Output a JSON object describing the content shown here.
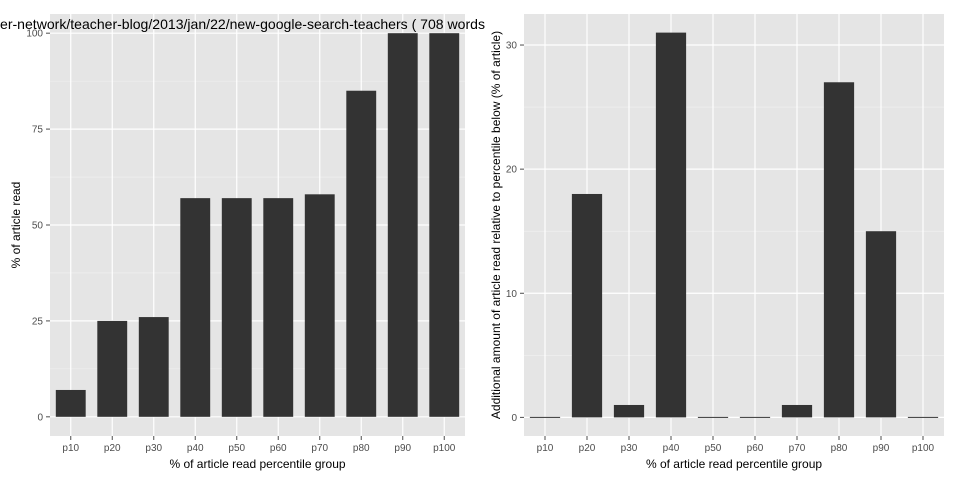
{
  "chart_data": [
    {
      "type": "bar",
      "title": "er-network/teacher-blog/2013/jan/22/new-google-search-teachers ( 708 words",
      "xlabel": "% of article read percentile group",
      "ylabel": "% of article read",
      "categories": [
        "p10",
        "p20",
        "p30",
        "p40",
        "p50",
        "p60",
        "p70",
        "p80",
        "p90",
        "p100"
      ],
      "values": [
        7,
        25,
        26,
        57,
        57,
        57,
        58,
        85,
        100,
        100
      ],
      "ylim": [
        -5,
        105
      ],
      "yticks": [
        0,
        25,
        50,
        75,
        100
      ],
      "grid": true,
      "bar_color": "#333333",
      "panel_color": "#e5e5e5"
    },
    {
      "type": "bar",
      "title": "",
      "xlabel": "% of article read percentile group",
      "ylabel": "Additional amount of article read relative to percentile below (% of article)",
      "categories": [
        "p10",
        "p20",
        "p30",
        "p40",
        "p50",
        "p60",
        "p70",
        "p80",
        "p90",
        "p100"
      ],
      "values": [
        0,
        18,
        1,
        31,
        0,
        0,
        1,
        27,
        15,
        0
      ],
      "ylim": [
        -1.5,
        32.5
      ],
      "yticks": [
        0,
        10,
        20,
        30
      ],
      "grid": true,
      "bar_color": "#333333",
      "panel_color": "#e5e5e5"
    }
  ]
}
